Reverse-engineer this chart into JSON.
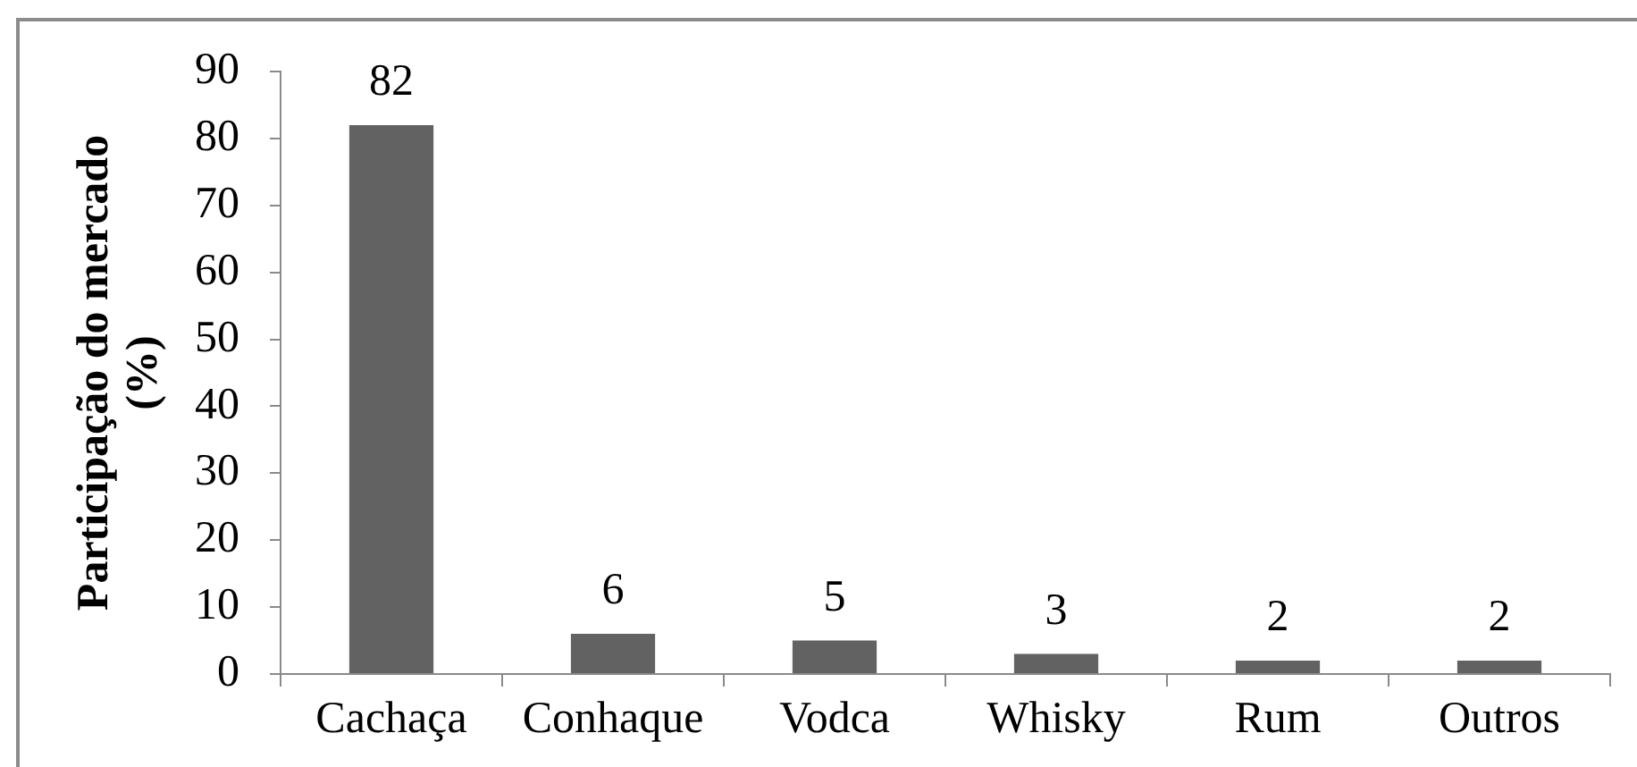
{
  "chart_data": {
    "type": "bar",
    "ylabel": "Participação do mercado\n(%)",
    "categories": [
      "Cachaça",
      "Conhaque",
      "Vodca",
      "Whisky",
      "Rum",
      "Outros"
    ],
    "values": [
      82,
      6,
      5,
      3,
      2,
      2
    ],
    "color": "#626262",
    "ylim": [
      0,
      90
    ],
    "yticks": [
      0,
      10,
      20,
      30,
      40,
      50,
      60,
      70,
      80,
      90
    ],
    "grid": false,
    "data_labels": true
  }
}
